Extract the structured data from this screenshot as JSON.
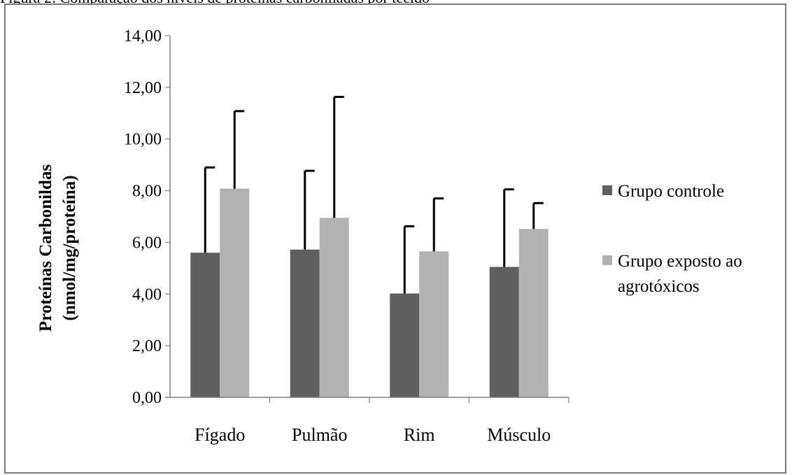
{
  "caption": "Figura 2: Comparação dos níveis de proteínas carboniladas por tecido",
  "chart_data": {
    "type": "bar",
    "categories": [
      "Fígado",
      "Pulmão",
      "Rim",
      "Músculo"
    ],
    "series": [
      {
        "name": "Grupo controle",
        "values": [
          5.6,
          5.72,
          4.02,
          5.05
        ],
        "errors": [
          3.3,
          3.05,
          2.6,
          3.0
        ],
        "color": "#5f5f5f"
      },
      {
        "name": "Grupo exposto ao agrotóxicos",
        "values": [
          8.08,
          6.95,
          5.65,
          6.52
        ],
        "errors": [
          3.0,
          4.68,
          2.05,
          1.0
        ],
        "color": "#b2b2b2"
      }
    ],
    "ylabel_lines": [
      "Proteínas Carbonildas",
      "(nmol/mg/proteína)"
    ],
    "ylim": [
      0,
      14
    ],
    "yticks": [
      "0,00",
      "2,00",
      "4,00",
      "6,00",
      "8,00",
      "10,00",
      "12,00",
      "14,00"
    ],
    "legend_position": "right",
    "grid": false,
    "error_bar_color": "#000000"
  }
}
